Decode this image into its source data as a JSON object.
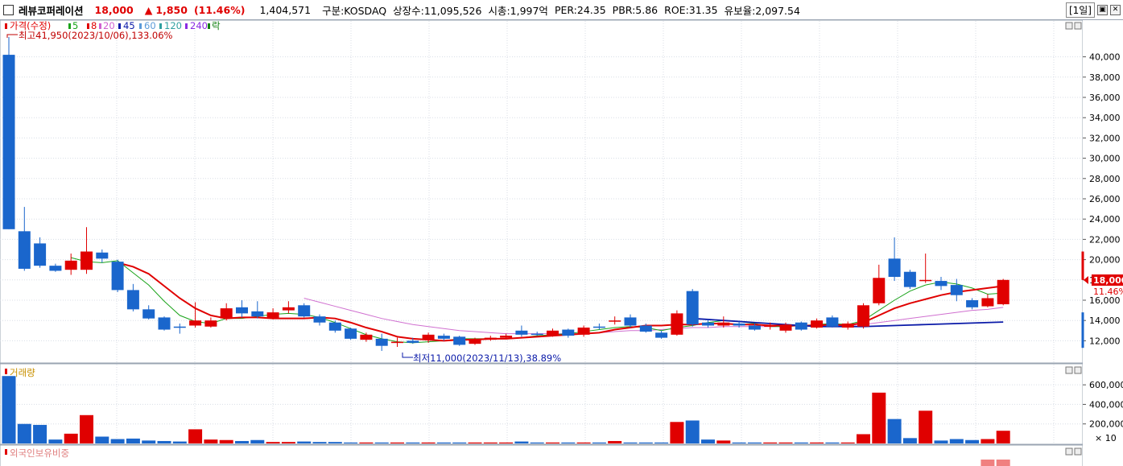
{
  "header": {
    "stock_name": "레뷰코퍼레이션",
    "price": "18,000",
    "change_arrow": "▲",
    "change": "1,850",
    "change_pct": "(11.46%)",
    "volume": "1,404,571",
    "market": "구분:KOSDAQ",
    "shares": "상장수:11,095,526",
    "mktcap": "시총:1,997억",
    "per": "PER:24.35",
    "pbr": "PBR:5.86",
    "roe": "ROE:31.35",
    "float_rate": "유보율:2,097.54",
    "period": "[1일]",
    "max_icon": "maximize-icon",
    "close_icon": "close-icon"
  },
  "legend": {
    "price": "가격(수정)",
    "ma5": "5",
    "ma8": "8",
    "ma20": "20",
    "ma45": "45",
    "ma60": "60",
    "ma120": "120",
    "ma240": "240",
    "rak": "락",
    "colors": {
      "ma5": "#19a319",
      "ma8": "#e00000",
      "ma20": "#d060d0",
      "ma45": "#0a1aa8",
      "ma60": "#5a9ad8",
      "ma120": "#30a0a0",
      "ma240": "#8a2be2",
      "rak": "#108010"
    }
  },
  "annotations": {
    "high": "최고41,950(2023/10/06),133.06%",
    "low": "최저11,000(2023/11/13),38.89%"
  },
  "current_tag": {
    "price": "18,000",
    "pct": "11.46%"
  },
  "volume_panel": {
    "title": "거래량",
    "multiplier": "× 10"
  },
  "foreign_panel": {
    "title": "외국인보유비중"
  },
  "chart_data": {
    "type": "candlestick",
    "ylim": [
      11000,
      41000
    ],
    "yticks": [
      12000,
      14000,
      16000,
      18000,
      20000,
      22000,
      24000,
      26000,
      28000,
      30000,
      32000,
      34000,
      36000,
      38000,
      40000
    ],
    "candles": [
      {
        "o": 40200,
        "c": 23000,
        "h": 41950,
        "l": 23000,
        "up": false
      },
      {
        "o": 22800,
        "c": 19100,
        "h": 25200,
        "l": 18900,
        "up": false
      },
      {
        "o": 21600,
        "c": 19400,
        "h": 22200,
        "l": 19200,
        "up": false
      },
      {
        "o": 19400,
        "c": 18900,
        "h": 19600,
        "l": 18800,
        "up": false
      },
      {
        "o": 19000,
        "c": 19900,
        "h": 20600,
        "l": 18500,
        "up": true
      },
      {
        "o": 19000,
        "c": 20800,
        "h": 23200,
        "l": 18600,
        "up": true
      },
      {
        "o": 20700,
        "c": 20100,
        "h": 21000,
        "l": 19700,
        "up": false
      },
      {
        "o": 19800,
        "c": 17000,
        "h": 20000,
        "l": 16800,
        "up": false
      },
      {
        "o": 17000,
        "c": 15100,
        "h": 17600,
        "l": 14900,
        "up": false
      },
      {
        "o": 15100,
        "c": 14200,
        "h": 15500,
        "l": 14100,
        "up": false
      },
      {
        "o": 14300,
        "c": 13100,
        "h": 14400,
        "l": 13000,
        "up": false
      },
      {
        "o": 13400,
        "c": 13300,
        "h": 13700,
        "l": 12700,
        "up": false
      },
      {
        "o": 13500,
        "c": 14000,
        "h": 15800,
        "l": 13300,
        "up": true
      },
      {
        "o": 13400,
        "c": 14000,
        "h": 14300,
        "l": 13300,
        "up": true
      },
      {
        "o": 14200,
        "c": 15200,
        "h": 15700,
        "l": 14000,
        "up": true
      },
      {
        "o": 15300,
        "c": 14700,
        "h": 16000,
        "l": 14300,
        "up": false
      },
      {
        "o": 14900,
        "c": 14400,
        "h": 15900,
        "l": 14200,
        "up": false
      },
      {
        "o": 14200,
        "c": 14800,
        "h": 15200,
        "l": 14100,
        "up": true
      },
      {
        "o": 15000,
        "c": 15300,
        "h": 15900,
        "l": 14700,
        "up": true
      },
      {
        "o": 15500,
        "c": 14400,
        "h": 15700,
        "l": 14300,
        "up": false
      },
      {
        "o": 14400,
        "c": 13800,
        "h": 14600,
        "l": 13500,
        "up": false
      },
      {
        "o": 13800,
        "c": 13000,
        "h": 14000,
        "l": 12800,
        "up": false
      },
      {
        "o": 13200,
        "c": 12200,
        "h": 13300,
        "l": 12100,
        "up": false
      },
      {
        "o": 12600,
        "c": 12100,
        "h": 12800,
        "l": 11900,
        "up": true
      },
      {
        "o": 12200,
        "c": 11500,
        "h": 12700,
        "l": 11000,
        "up": false
      },
      {
        "o": 11800,
        "c": 11900,
        "h": 12300,
        "l": 11400,
        "up": true
      },
      {
        "o": 12000,
        "c": 11800,
        "h": 12300,
        "l": 11700,
        "up": false
      },
      {
        "o": 12100,
        "c": 12600,
        "h": 12800,
        "l": 11800,
        "up": true
      },
      {
        "o": 12500,
        "c": 12200,
        "h": 12700,
        "l": 12000,
        "up": false
      },
      {
        "o": 12400,
        "c": 11600,
        "h": 12500,
        "l": 11500,
        "up": false
      },
      {
        "o": 11700,
        "c": 12200,
        "h": 12300,
        "l": 11600,
        "up": true
      },
      {
        "o": 12100,
        "c": 12300,
        "h": 12500,
        "l": 12000,
        "up": true
      },
      {
        "o": 12300,
        "c": 12500,
        "h": 12700,
        "l": 12200,
        "up": true
      },
      {
        "o": 12600,
        "c": 13000,
        "h": 13500,
        "l": 12400,
        "up": false
      },
      {
        "o": 12700,
        "c": 12700,
        "h": 12900,
        "l": 12500,
        "up": false
      },
      {
        "o": 12500,
        "c": 13000,
        "h": 13200,
        "l": 12400,
        "up": true
      },
      {
        "o": 13100,
        "c": 12500,
        "h": 13200,
        "l": 12300,
        "up": false
      },
      {
        "o": 12600,
        "c": 13300,
        "h": 13500,
        "l": 12400,
        "up": true
      },
      {
        "o": 13400,
        "c": 13300,
        "h": 13700,
        "l": 13100,
        "up": false
      },
      {
        "o": 14000,
        "c": 13900,
        "h": 14400,
        "l": 13600,
        "up": true
      },
      {
        "o": 14300,
        "c": 13500,
        "h": 14600,
        "l": 13300,
        "up": false
      },
      {
        "o": 13500,
        "c": 12900,
        "h": 13700,
        "l": 12800,
        "up": false
      },
      {
        "o": 12800,
        "c": 12300,
        "h": 13000,
        "l": 12200,
        "up": false
      },
      {
        "o": 12600,
        "c": 14700,
        "h": 15000,
        "l": 12500,
        "up": true
      },
      {
        "o": 16900,
        "c": 13600,
        "h": 17100,
        "l": 13400,
        "up": false
      },
      {
        "o": 13500,
        "c": 13800,
        "h": 14100,
        "l": 13300,
        "up": false
      },
      {
        "o": 13500,
        "c": 13800,
        "h": 14400,
        "l": 13300,
        "up": true
      },
      {
        "o": 13700,
        "c": 13500,
        "h": 13900,
        "l": 13300,
        "up": false
      },
      {
        "o": 13500,
        "c": 13100,
        "h": 13700,
        "l": 13000,
        "up": false
      },
      {
        "o": 13500,
        "c": 13500,
        "h": 13800,
        "l": 13100,
        "up": true
      },
      {
        "o": 13000,
        "c": 13600,
        "h": 13800,
        "l": 12800,
        "up": true
      },
      {
        "o": 13800,
        "c": 13100,
        "h": 13900,
        "l": 13000,
        "up": false
      },
      {
        "o": 13300,
        "c": 14000,
        "h": 14200,
        "l": 13200,
        "up": true
      },
      {
        "o": 14300,
        "c": 13400,
        "h": 14500,
        "l": 13300,
        "up": false
      },
      {
        "o": 13300,
        "c": 13700,
        "h": 13900,
        "l": 13100,
        "up": true
      },
      {
        "o": 13400,
        "c": 15500,
        "h": 15700,
        "l": 13200,
        "up": true
      },
      {
        "o": 15700,
        "c": 18200,
        "h": 19500,
        "l": 15500,
        "up": true
      },
      {
        "o": 20100,
        "c": 18300,
        "h": 22200,
        "l": 17900,
        "up": false
      },
      {
        "o": 18800,
        "c": 17300,
        "h": 19000,
        "l": 17100,
        "up": false
      },
      {
        "o": 17900,
        "c": 18000,
        "h": 20600,
        "l": 17700,
        "up": true
      },
      {
        "o": 17900,
        "c": 17400,
        "h": 18300,
        "l": 17000,
        "up": false
      },
      {
        "o": 17500,
        "c": 16500,
        "h": 18100,
        "l": 15900,
        "up": false
      },
      {
        "o": 16000,
        "c": 15300,
        "h": 16200,
        "l": 15100,
        "up": false
      },
      {
        "o": 15400,
        "c": 16200,
        "h": 16600,
        "l": 15300,
        "up": true
      },
      {
        "o": 15600,
        "c": 18000,
        "h": 18100,
        "l": 15500,
        "up": true
      }
    ],
    "ma5": [
      null,
      null,
      null,
      null,
      20200,
      19800,
      19700,
      19900,
      18700,
      17500,
      15900,
      14500,
      13900,
      13700,
      14200,
      14200,
      14400,
      14600,
      14700,
      14600,
      14300,
      13800,
      13200,
      12600,
      12200,
      11900,
      11800,
      11900,
      12000,
      12200,
      12200,
      12200,
      12200,
      12300,
      12500,
      12600,
      12700,
      12900,
      13100,
      13300,
      13400,
      13300,
      13000,
      13300,
      13500,
      13800,
      14000,
      13900,
      13700,
      13400,
      13400,
      13500,
      13600,
      13700,
      13600,
      14000,
      15000,
      16000,
      16900,
      17500,
      17800,
      17600,
      17200,
      16600,
      16700
    ],
    "ma8": [
      null,
      null,
      null,
      null,
      null,
      null,
      null,
      19700,
      19300,
      18600,
      17400,
      16200,
      15200,
      14500,
      14200,
      14300,
      14300,
      14200,
      14200,
      14200,
      14300,
      14200,
      13800,
      13300,
      12900,
      12400,
      12200,
      12100,
      12000,
      12100,
      12100,
      12200,
      12200,
      12300,
      12400,
      12500,
      12600,
      12700,
      12800,
      13100,
      13300,
      13500,
      13500,
      13600,
      13600,
      13700,
      13700,
      13600,
      13600,
      13500,
      13500,
      13500,
      13500,
      13600,
      13500,
      13800,
      14500,
      15200,
      15700,
      16100,
      16500,
      16800,
      17000,
      17200,
      17400
    ],
    "ma20": [
      null,
      null,
      null,
      null,
      null,
      null,
      null,
      null,
      null,
      null,
      null,
      null,
      null,
      null,
      null,
      null,
      null,
      null,
      null,
      16200,
      15800,
      15400,
      15000,
      14600,
      14200,
      13900,
      13600,
      13400,
      13200,
      13000,
      12900,
      12800,
      12700,
      12700,
      12700,
      12700,
      12700,
      12700,
      12800,
      12900,
      13000,
      13000,
      13100,
      13200,
      13300,
      13300,
      13400,
      13400,
      13400,
      13400,
      13400,
      13500,
      13500,
      13500,
      13500,
      13600,
      13800,
      14000,
      14200,
      14400,
      14600,
      14800,
      15000,
      15100,
      15300
    ],
    "ma45": [
      null,
      null,
      null,
      null,
      null,
      null,
      null,
      null,
      null,
      null,
      null,
      null,
      null,
      null,
      null,
      null,
      null,
      null,
      null,
      null,
      null,
      null,
      null,
      null,
      null,
      null,
      null,
      null,
      null,
      null,
      null,
      null,
      null,
      null,
      null,
      null,
      null,
      null,
      null,
      null,
      null,
      null,
      null,
      null,
      14200,
      14100,
      14000,
      13900,
      13800,
      13700,
      13600,
      13500,
      13400,
      13400,
      13400,
      13400,
      13450,
      13500,
      13550,
      13600,
      13650,
      13700,
      13750,
      13800,
      13850
    ],
    "volume_ylim": [
      0,
      700000
    ],
    "volume_ticks": [
      200000,
      400000,
      600000
    ],
    "volume": [
      690000,
      200000,
      190000,
      40000,
      100000,
      290000,
      70000,
      45000,
      50000,
      30000,
      25000,
      20000,
      145000,
      40000,
      35000,
      25000,
      35000,
      15000,
      15000,
      20000,
      15000,
      15000,
      10000,
      10000,
      10000,
      10000,
      10000,
      10000,
      10000,
      10000,
      10000,
      10000,
      10000,
      20000,
      10000,
      10000,
      10000,
      10000,
      10000,
      25000,
      10000,
      10000,
      10000,
      220000,
      235000,
      40000,
      30000,
      10000,
      10000,
      10000,
      10000,
      10000,
      10000,
      10000,
      10000,
      95000,
      520000,
      250000,
      55000,
      335000,
      30000,
      45000,
      35000,
      45000,
      130000
    ],
    "foreign": {
      "indices": [
        63,
        64
      ],
      "up": true
    }
  }
}
